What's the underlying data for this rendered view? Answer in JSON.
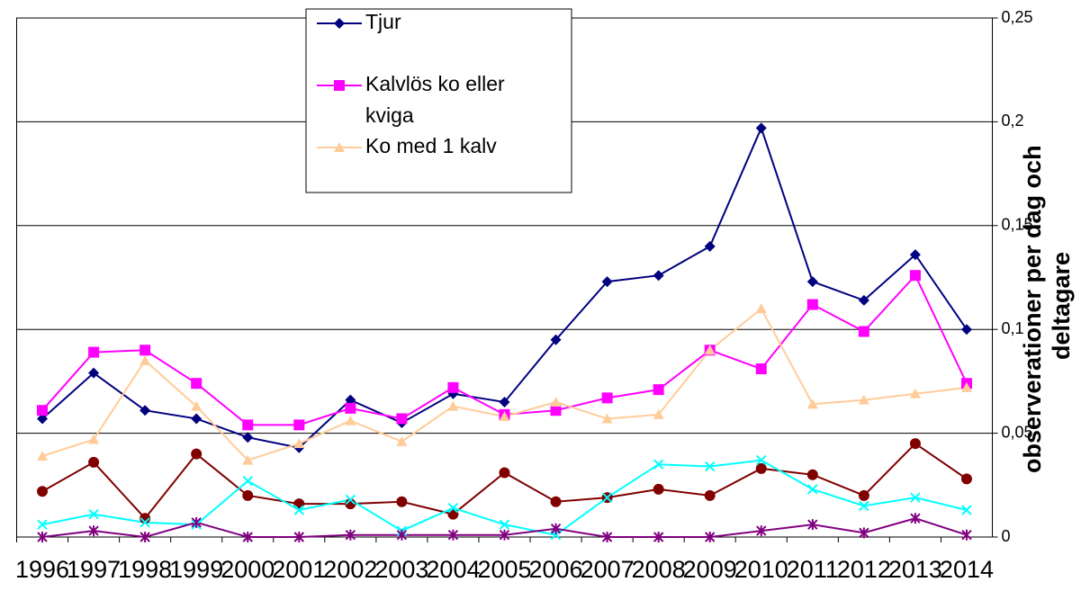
{
  "chart_data": {
    "type": "line",
    "y_axis_label": "observerationer per dag och deltagare",
    "categories": [
      "1996",
      "1997",
      "1998",
      "1999",
      "2000",
      "2001",
      "2002",
      "2003",
      "2004",
      "2005",
      "2006",
      "2007",
      "2008",
      "2009",
      "2010",
      "2011",
      "2012",
      "2013",
      "2014"
    ],
    "series": [
      {
        "name": "Tjur",
        "color": "#000080",
        "marker": "diamond",
        "values": [
          0.057,
          0.079,
          0.061,
          0.057,
          0.048,
          0.043,
          0.066,
          0.055,
          0.069,
          0.065,
          0.095,
          0.123,
          0.126,
          0.14,
          0.197,
          0.123,
          0.114,
          0.136,
          0.1
        ]
      },
      {
        "name": "Kalvlös ko eller kviga",
        "color": "#ff00ff",
        "marker": "square",
        "values": [
          0.061,
          0.089,
          0.09,
          0.074,
          0.054,
          0.054,
          0.062,
          0.057,
          0.072,
          0.059,
          0.061,
          0.067,
          0.071,
          0.09,
          0.081,
          0.112,
          0.099,
          0.126,
          0.074
        ]
      },
      {
        "name": "Ko med 1 kalv",
        "color": "#ffcc99",
        "marker": "triangle",
        "values": [
          0.039,
          0.047,
          0.085,
          0.063,
          0.037,
          0.045,
          0.056,
          0.046,
          0.063,
          0.058,
          0.065,
          0.057,
          0.059,
          0.09,
          0.11,
          0.064,
          0.066,
          0.069,
          0.072
        ]
      },
      {
        "color": "#800000",
        "marker": "circle",
        "values": [
          0.022,
          0.036,
          0.009,
          0.04,
          0.02,
          0.016,
          0.016,
          0.017,
          0.011,
          0.031,
          0.017,
          0.019,
          0.023,
          0.02,
          0.033,
          0.03,
          0.02,
          0.045,
          0.028
        ]
      },
      {
        "color": "#00ffff",
        "marker": "x",
        "values": [
          0.006,
          0.011,
          0.007,
          0.006,
          0.027,
          0.013,
          0.018,
          0.003,
          0.014,
          0.006,
          0.001,
          0.019,
          0.035,
          0.034,
          0.037,
          0.023,
          0.015,
          0.019,
          0.013
        ]
      },
      {
        "color": "#800080",
        "marker": "star",
        "values": [
          0,
          0.003,
          0,
          0.007,
          0,
          0,
          0.001,
          0.001,
          0.001,
          0.001,
          0.004,
          0,
          0,
          0,
          0.003,
          0.006,
          0.002,
          0.009,
          0.001
        ]
      }
    ],
    "ylim": [
      0,
      0.25
    ],
    "yticks": [
      {
        "value": 0,
        "label": "0"
      },
      {
        "value": 0.05,
        "label": "0,05"
      },
      {
        "value": 0.1,
        "label": "0,1"
      },
      {
        "value": 0.15,
        "label": "0,15"
      },
      {
        "value": 0.2,
        "label": "0,2"
      },
      {
        "value": 0.25,
        "label": "0,25"
      }
    ],
    "grid": true,
    "y_axis_side": "right",
    "legend": "top"
  }
}
